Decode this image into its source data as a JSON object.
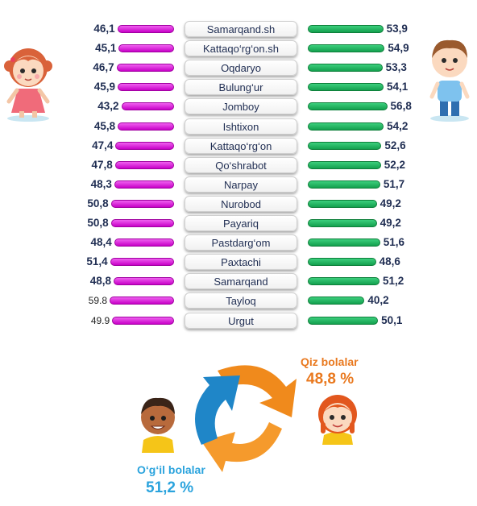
{
  "chart_data": {
    "type": "bar",
    "orientation": "horizontal-diverging",
    "series": [
      {
        "values": [
          46.1,
          45.1,
          46.7,
          45.9,
          43.2,
          45.8,
          47.4,
          47.8,
          48.3,
          50.8,
          50.8,
          48.4,
          51.4,
          48.8,
          59.8,
          49.9
        ],
        "labels": [
          "46,1",
          "45,1",
          "46,7",
          "45,9",
          "43,2",
          "45,8",
          "47,4",
          "47,8",
          "48,3",
          "50,8",
          "50,8",
          "48,4",
          "51,4",
          "48,8",
          "59.8",
          "49.9"
        ],
        "color": "#d81bd8"
      },
      {
        "values": [
          53.9,
          54.9,
          53.3,
          54.1,
          56.8,
          54.2,
          52.6,
          52.2,
          51.7,
          49.2,
          49.2,
          51.6,
          48.6,
          51.2,
          40.2,
          50.1
        ],
        "labels": [
          "53,9",
          "54,9",
          "53,3",
          "54,1",
          "56,8",
          "54,2",
          "52,6",
          "52,2",
          "51,7",
          "49,2",
          "49,2",
          "51,6",
          "48,6",
          "51,2",
          "40,2",
          "50,1"
        ],
        "color": "#1aa957"
      }
    ],
    "categories": [
      "Samarqand.sh",
      "Kattaqo‘rg‘on.sh",
      "Oqdaryo",
      "Bulung‘ur",
      "Jomboy",
      "Ishtixon",
      "Kattaqo‘rg‘on",
      "Qo‘shrabot",
      "Narpay",
      "Nurobod",
      "Payariq",
      "Pastdarg‘om",
      "Paxtachi",
      "Samarqand",
      "Tayloq",
      "Urgut"
    ],
    "plain_label_rows": [
      14,
      15
    ],
    "title": "",
    "xlabel": "",
    "ylabel": ""
  },
  "summary": {
    "girls_label": "Qiz bolalar",
    "girls_value": "48,8 %",
    "boys_label": "O‘g‘il bolalar",
    "boys_value": "51,2 %"
  },
  "icons": [
    "girl-icon",
    "boy-icon",
    "girl-face-icon",
    "boy-face-icon",
    "cycle-arrows-icon"
  ],
  "colors": {
    "girls": "#d81bd8",
    "boys": "#1aa957",
    "girls_text": "#e9791f",
    "boys_text": "#2aa3dd",
    "arrow_orange": "#f08a1c",
    "arrow_blue": "#1f86c8"
  }
}
